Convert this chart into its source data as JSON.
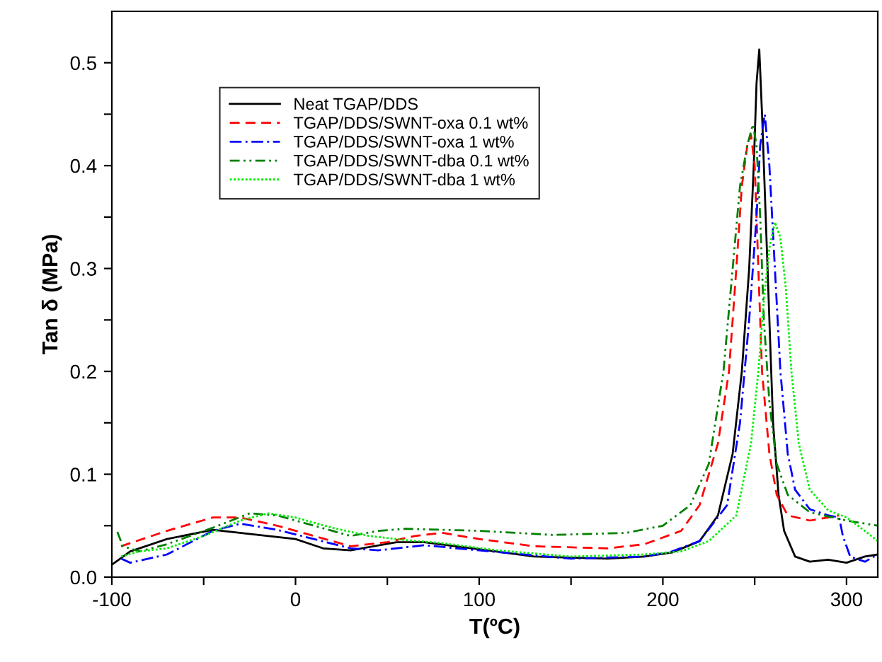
{
  "chart_data": {
    "type": "line",
    "xlabel": "T(ºC)",
    "ylabel": "Tan δ (MPa)",
    "xlim": [
      -100,
      317
    ],
    "ylim": [
      0,
      0.55
    ],
    "xticks": [
      -100,
      {
        "value": -50,
        "label": null
      },
      0,
      {
        "value": 50,
        "label": null
      },
      100,
      {
        "value": 150,
        "label": null
      },
      200,
      {
        "value": 250,
        "label": null
      },
      300
    ],
    "yticks": [
      {
        "value": 0,
        "label": "0.0"
      },
      {
        "value": 0.05,
        "label": null
      },
      0.1,
      {
        "value": 0.15,
        "label": null
      },
      0.2,
      {
        "value": 0.25,
        "label": null
      },
      0.3,
      {
        "value": 0.35,
        "label": null
      },
      0.4,
      {
        "value": 0.45,
        "label": null
      },
      0.5
    ],
    "grid": false,
    "legend": "top left",
    "marker": "none",
    "series": [
      {
        "name": "Neat TGAP/DDS",
        "color": "#000000",
        "line_style": "solid",
        "x": [
          -100,
          -90,
          -70,
          -45,
          -20,
          0,
          15,
          30,
          55,
          70,
          100,
          130,
          170,
          190,
          205,
          220,
          230,
          238,
          243,
          247,
          249.5,
          251,
          252.5,
          254,
          256,
          258,
          260,
          263,
          266,
          272,
          280,
          290,
          300,
          310,
          317
        ],
        "values": [
          0.012,
          0.025,
          0.037,
          0.046,
          0.041,
          0.037,
          0.028,
          0.026,
          0.034,
          0.034,
          0.027,
          0.02,
          0.018,
          0.02,
          0.024,
          0.035,
          0.06,
          0.12,
          0.2,
          0.3,
          0.4,
          0.48,
          0.513,
          0.45,
          0.35,
          0.25,
          0.15,
          0.08,
          0.045,
          0.02,
          0.015,
          0.017,
          0.014,
          0.02,
          0.022
        ]
      },
      {
        "name": "TGAP/DDS/SWNT-oxa 0.1 wt%",
        "color": "#ff0000",
        "line_style": "dashed",
        "x": [
          -95,
          -70,
          -45,
          -30,
          -10,
          10,
          30,
          50,
          65,
          80,
          100,
          130,
          170,
          190,
          210,
          220,
          230,
          236,
          240,
          243,
          246,
          248,
          250,
          252,
          254,
          258,
          262,
          268,
          280,
          290,
          296
        ],
        "values": [
          0.03,
          0.045,
          0.058,
          0.058,
          0.05,
          0.04,
          0.03,
          0.034,
          0.04,
          0.043,
          0.037,
          0.03,
          0.028,
          0.032,
          0.045,
          0.07,
          0.13,
          0.2,
          0.3,
          0.38,
          0.42,
          0.43,
          0.4,
          0.3,
          0.2,
          0.12,
          0.08,
          0.06,
          0.055,
          0.058,
          0.06
        ]
      },
      {
        "name": "TGAP/DDS/SWNT-oxa 1 wt%",
        "color": "#0000ff",
        "line_style": "dashdot",
        "x": [
          -95,
          -90,
          -70,
          -45,
          -30,
          -10,
          10,
          30,
          45,
          70,
          100,
          150,
          190,
          205,
          220,
          235,
          242,
          247,
          251,
          253,
          255.5,
          258,
          261,
          264,
          268,
          272,
          280,
          290,
          296,
          298,
          302,
          310,
          317
        ],
        "values": [
          0.018,
          0.014,
          0.022,
          0.045,
          0.052,
          0.046,
          0.037,
          0.028,
          0.026,
          0.031,
          0.026,
          0.018,
          0.02,
          0.025,
          0.035,
          0.07,
          0.15,
          0.25,
          0.35,
          0.42,
          0.45,
          0.4,
          0.3,
          0.2,
          0.12,
          0.085,
          0.066,
          0.06,
          0.058,
          0.04,
          0.02,
          0.015,
          0.022
        ]
      },
      {
        "name": "TGAP/DDS/SWNT-dba 0.1 wt%",
        "color": "#008000",
        "line_style": "dashdotdot",
        "x": [
          -97,
          -94,
          -85,
          -70,
          -45,
          -25,
          -10,
          10,
          30,
          45,
          60,
          100,
          140,
          180,
          200,
          215,
          225,
          233,
          238,
          242,
          246,
          249,
          251,
          253,
          255,
          258,
          262,
          268,
          280,
          300,
          317
        ],
        "values": [
          0.044,
          0.03,
          0.025,
          0.032,
          0.048,
          0.062,
          0.06,
          0.05,
          0.04,
          0.045,
          0.047,
          0.045,
          0.041,
          0.043,
          0.05,
          0.07,
          0.11,
          0.2,
          0.3,
          0.38,
          0.42,
          0.44,
          0.42,
          0.35,
          0.25,
          0.17,
          0.11,
          0.08,
          0.063,
          0.055,
          0.05
        ]
      },
      {
        "name": "TGAP/DDS/SWNT-dba 1 wt%",
        "color": "#00ee00",
        "line_style": "dotted",
        "x": [
          -95,
          -85,
          -70,
          -50,
          -30,
          -15,
          0,
          20,
          40,
          60,
          80,
          110,
          150,
          190,
          210,
          225,
          240,
          248,
          252,
          255,
          258,
          261,
          264,
          267,
          270,
          274,
          280,
          290,
          300,
          310,
          317
        ],
        "values": [
          0.02,
          0.025,
          0.028,
          0.04,
          0.055,
          0.062,
          0.058,
          0.048,
          0.04,
          0.036,
          0.033,
          0.026,
          0.02,
          0.022,
          0.025,
          0.035,
          0.06,
          0.13,
          0.2,
          0.27,
          0.32,
          0.345,
          0.33,
          0.28,
          0.2,
          0.13,
          0.085,
          0.065,
          0.058,
          0.045,
          0.035
        ]
      }
    ]
  }
}
